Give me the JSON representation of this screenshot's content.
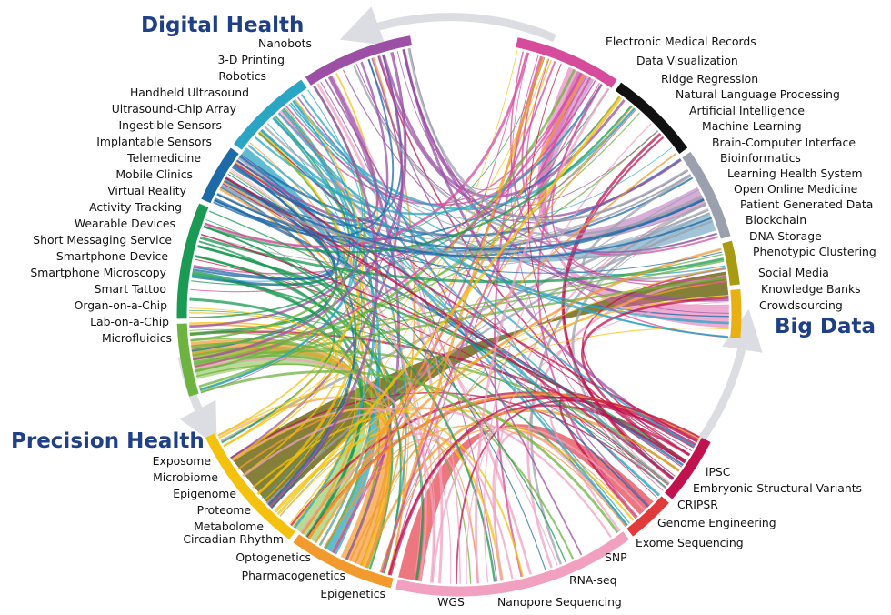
{
  "titles": {
    "digital": "Digital Health",
    "big_data": "Big Data",
    "precision": "Precision Health"
  },
  "groups": [
    {
      "id": "digital",
      "color": "#9b4fa5",
      "labels": [
        "Nanobots",
        "3-D Printing",
        "Robotics"
      ]
    },
    {
      "id": "digital2",
      "color": "#2aa6c4",
      "labels": [
        "Handheld Ultrasound",
        "Ultrasound-Chip Array",
        "Ingestible Sensors",
        "Implantable Sensors"
      ]
    },
    {
      "id": "digital3",
      "color": "#1e6aa8",
      "labels": [
        "Telemedicine",
        "Mobile Clinics",
        "Virtual Reality"
      ]
    },
    {
      "id": "digital4",
      "color": "#1a9a52",
      "labels": [
        "Activity Tracking",
        "Wearable Devices",
        "Short Messaging Service",
        "Smartphone-Device",
        "Smartphone Microscopy"
      ]
    },
    {
      "id": "digital5",
      "color": "#6db33f",
      "labels": [
        "Smart Tattoo",
        "Organ-on-a-Chip",
        "Lab-on-a-Chip",
        "Microfluidics"
      ]
    },
    {
      "id": "precision",
      "color": "#f4c20d",
      "labels": [
        "Exposome",
        "Microbiome",
        "Epigenome",
        "Proteome",
        "Metabolome",
        "Circadian Rhythm"
      ]
    },
    {
      "id": "precision2",
      "color": "#f39a2e",
      "labels": [
        "Optogenetics",
        "Pharmacogenetics",
        "Epigenetics"
      ]
    },
    {
      "id": "genomics",
      "color": "#f2a0c0",
      "labels": [
        "WGS",
        "Nanopore Sequencing",
        "RNA-seq",
        "SNP",
        "Exome Sequencing"
      ]
    },
    {
      "id": "genomics2",
      "color": "#e03a3a",
      "labels": [
        "Genome Engineering",
        "CRIPSR"
      ]
    },
    {
      "id": "genomics3",
      "color": "#c0134d",
      "labels": [
        "Embryonic-Structural Variants",
        "iPSC"
      ]
    },
    {
      "id": "bigdata",
      "color": "#d64b9c",
      "labels": [
        "Electronic Medical Records",
        "Data Visualization",
        "Ridge Regression"
      ]
    },
    {
      "id": "bigdata2",
      "color": "#111111",
      "labels": [
        "Natural Language Processing",
        "Artificial Intelligence",
        "Machine Learning",
        "Brain-Computer Interface"
      ]
    },
    {
      "id": "bigdata3",
      "color": "#9aa0ad",
      "labels": [
        "Bioinformatics",
        "Learning Health System",
        "Open Online Medicine",
        "Patient Generated Data"
      ]
    },
    {
      "id": "bigdata4",
      "color": "#a89a12",
      "labels": [
        "Blockchain",
        "DNA Storage",
        "Phenotypic Clustering"
      ]
    },
    {
      "id": "bigdata5",
      "color": "#e8b010",
      "labels": [
        "Social Media",
        "Knowledge Banks",
        "Crowdsourcing"
      ]
    }
  ]
}
